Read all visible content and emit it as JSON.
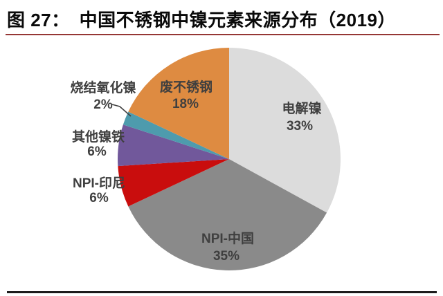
{
  "header": {
    "figure_label": "图 27：",
    "title": "中国不锈钢中镍元素来源分布（2019）"
  },
  "colors": {
    "background": "#FFFFFF",
    "title_text": "#0A0A0A",
    "title_divider": "#953735",
    "bottom_divider": "#1C1C1C",
    "label_text": "#3F3F3F",
    "leader_line": "#404040"
  },
  "chart_data": {
    "type": "pie",
    "title": "图 27： 中国不锈钢中镍元素来源分布（2019）",
    "labels": [
      "电解镍",
      "NPI-中国",
      "NPI-印尼",
      "其他镍铁",
      "烧结氧化镍",
      "废不锈钢"
    ],
    "values": [
      33,
      35,
      6,
      6,
      2,
      18
    ],
    "percent_labels": [
      "33%",
      "35%",
      "6%",
      "6%",
      "2%",
      "18%"
    ],
    "colors": [
      "#DCDCDC",
      "#8A8A8A",
      "#C90D0D",
      "#71589B",
      "#4E9BAD",
      "#DE8B41"
    ],
    "unit": "%",
    "start_angle_deg": 0,
    "direction": "clockwise",
    "legend_position": "none",
    "label_placement": [
      "inside",
      "inside",
      "outside-left",
      "outside-left",
      "outside-left-leader",
      "inside"
    ]
  }
}
